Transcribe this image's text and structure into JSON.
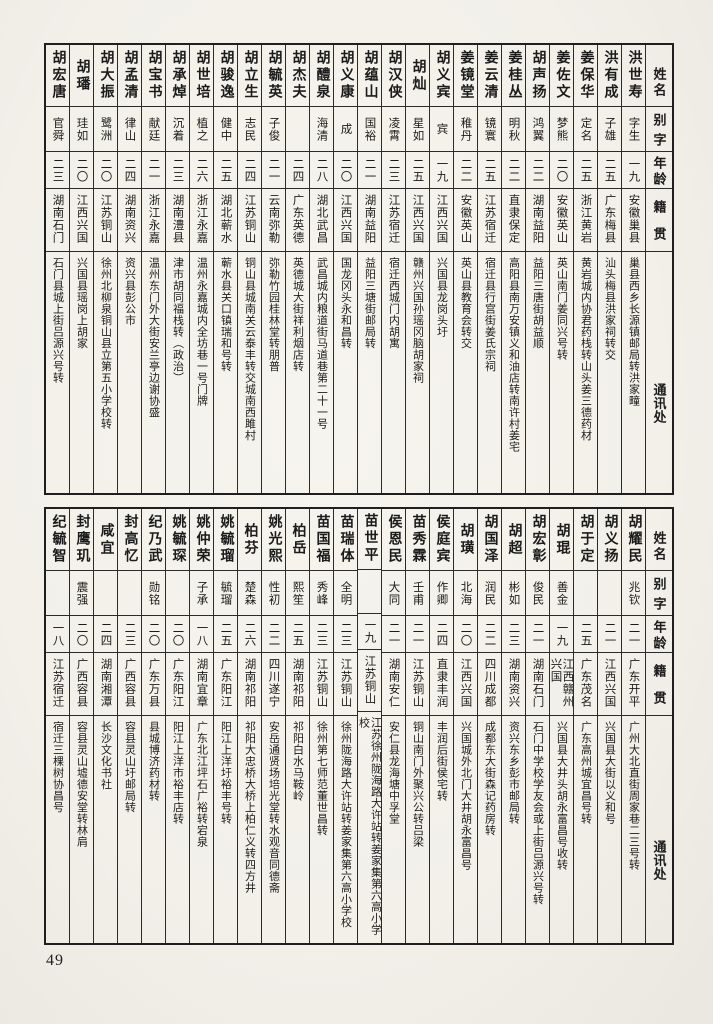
{
  "page": {
    "number": "49"
  },
  "colors": {
    "paper": "#f2f0e9",
    "ink": "#1b1b1b",
    "border": "#2b2b2b"
  },
  "headers": {
    "name": "姓名",
    "courtesy": "别字",
    "age": "年龄",
    "origin": "籍贯",
    "address": "通讯处"
  },
  "sections": [
    {
      "entries": [
        {
          "name": "洪世寿",
          "courtesy": "字生",
          "age": "一九",
          "origin": "安徽巢县",
          "address": "巢县西乡长源镇邮局转洪家疃"
        },
        {
          "name": "洪有成",
          "courtesy": "子雄",
          "age": "二五",
          "origin": "广东梅县",
          "address": "汕头梅县洪家祠转交"
        },
        {
          "name": "姜保华",
          "courtesy": "定名",
          "age": "二五",
          "origin": "浙江黄岩",
          "address": "黄岩城内协君药栈转山头姜三德药材"
        },
        {
          "name": "姜佐文",
          "courtesy": "梦熊",
          "age": "二〇",
          "origin": "安徽英山",
          "address": "英山南门姜同兴号转"
        },
        {
          "name": "胡声扬",
          "courtesy": "鸿翼",
          "age": "二二",
          "origin": "湖南益阳",
          "address": "益阳三唐街胡益顺"
        },
        {
          "name": "姜桂丛",
          "courtesy": "明秋",
          "age": "二二",
          "origin": "直隶保定",
          "address": "高阳县南万安镇义和油店转南许村姜宅"
        },
        {
          "name": "姜云清",
          "courtesy": "镜寰",
          "age": "二五",
          "origin": "江苏宿迁",
          "address": "宿迁县行宫街姜氏宗祠"
        },
        {
          "name": "姜镜堂",
          "courtesy": "稚丹",
          "age": "二二",
          "origin": "安徽英山",
          "address": "英山县教育会转交"
        },
        {
          "name": "胡义宾",
          "courtesy": "宾",
          "age": "一九",
          "origin": "江西兴国",
          "address": "兴国县龙岗头圩"
        },
        {
          "name": "胡灿",
          "courtesy": "星如",
          "age": "二五",
          "origin": "江西兴国",
          "address": "赣州兴国孙瑶冈脑胡家祠"
        },
        {
          "name": "胡汉侠",
          "courtesy": "凌霄",
          "age": "二三",
          "origin": "江苏宿迁",
          "address": "宿迁西城门内胡寓"
        },
        {
          "name": "胡蕴山",
          "courtesy": "国裕",
          "age": "二一",
          "origin": "湖南益阳",
          "address": "益阳三塘街邮局转"
        },
        {
          "name": "胡义康",
          "courtesy": "成",
          "age": "二〇",
          "origin": "江西兴国",
          "address": "国龙冈头永和昌转"
        },
        {
          "name": "胡醴泉",
          "courtesy": "海清",
          "age": "二八",
          "origin": "湖北武昌",
          "address": "武昌城内粮道街马道巷第二十一号"
        },
        {
          "name": "胡杰夫",
          "courtesy": "",
          "age": "二四",
          "origin": "广东英德",
          "address": "英德城大街祥利烟店转"
        },
        {
          "name": "胡毓英",
          "courtesy": "子俊",
          "age": "二一",
          "origin": "云南弥勒",
          "address": "弥勒竹园桂林堂转朋普"
        },
        {
          "name": "胡立生",
          "courtesy": "志民",
          "age": "二四",
          "origin": "江苏铜山",
          "address": "铜山县城南关云泰丰转交城南西雎村"
        },
        {
          "name": "胡骏逸",
          "courtesy": "健中",
          "age": "二五",
          "origin": "湖北蕲水",
          "address": "蕲水县关口镇瑞和号转"
        },
        {
          "name": "胡世培",
          "courtesy": "植之",
          "age": "二六",
          "origin": "浙江永嘉",
          "address": "温州永嘉城内全坊巷一号门牌"
        },
        {
          "name": "胡承焯",
          "courtesy": "沉着",
          "age": "二三",
          "origin": "湖南澧县",
          "address": "津市胡同福栈转（政治）"
        },
        {
          "name": "胡宝书",
          "courtesy": "献廷",
          "age": "二一",
          "origin": "浙江永嘉",
          "address": "温州东门外大街安兰亭边谢协盛"
        },
        {
          "name": "胡孟清",
          "courtesy": "律山",
          "age": "二四",
          "origin": "湖南资兴",
          "address": "资兴县彭公市"
        },
        {
          "name": "胡大振",
          "courtesy": "鹭洲",
          "age": "二〇",
          "origin": "江苏铜山",
          "address": "徐州北柳泉铜山县立第五小学校转"
        },
        {
          "name": "胡璠",
          "courtesy": "珪如",
          "age": "二〇",
          "origin": "江西兴国",
          "address": "兴国县瑶岗上胡家"
        },
        {
          "name": "胡宏唐",
          "courtesy": "官舜",
          "age": "二三",
          "origin": "湖南石门",
          "address": "石门县城上街吕源兴号转"
        }
      ]
    },
    {
      "entries": [
        {
          "name": "胡耀民",
          "courtesy": "兆钦",
          "age": "二一",
          "origin": "广东开平",
          "address": "广州大北直街周家巷二三号转"
        },
        {
          "name": "胡义扬",
          "courtesy": "",
          "age": "二一",
          "origin": "江西兴国",
          "address": "兴国县大街以义和号"
        },
        {
          "name": "胡于定",
          "courtesy": "",
          "age": "二五",
          "origin": "广东茂名",
          "address": "广东高州城宜昌号转"
        },
        {
          "name": "胡琨",
          "courtesy": "善金",
          "age": "一九",
          "origin": "江西赣州兴国",
          "address": "兴国县大井头胡永富昌号收转"
        },
        {
          "name": "胡宏彰",
          "courtesy": "俊民",
          "age": "二一",
          "origin": "湖南石门",
          "address": "石门中学校学友会或上街吕源兴号转"
        },
        {
          "name": "胡超",
          "courtesy": "彬如",
          "age": "二三",
          "origin": "湖南资兴",
          "address": "资兴东乡彭市邮局转"
        },
        {
          "name": "胡国泽",
          "courtesy": "润民",
          "age": "二二",
          "origin": "四川成都",
          "address": "成都东大街森记药房转"
        },
        {
          "name": "胡璜",
          "courtesy": "北海",
          "age": "二〇",
          "origin": "江西兴国",
          "address": "兴国城外北门大井胡永富昌号"
        },
        {
          "name": "侯庭宾",
          "courtesy": "作卿",
          "age": "二四",
          "origin": "直隶丰润",
          "address": "丰润后街侯宅转"
        },
        {
          "name": "苗秀霖",
          "courtesy": "壬甫",
          "age": "二一",
          "origin": "江苏铜山",
          "address": "铜山南门外聚兴公转吕梁"
        },
        {
          "name": "侯恩民",
          "courtesy": "大同",
          "age": "二一",
          "origin": "湖南安仁",
          "address": "安仁县龙海塘中孚堂"
        },
        {
          "name": "苗世平",
          "courtesy": "",
          "age": "一九",
          "origin": "江苏铜山",
          "address": "江苏徐州陇海路大许站转姜家集第六高小学校"
        },
        {
          "name": "苗瑞体",
          "courtesy": "全明",
          "age": "二三",
          "origin": "江苏铜山",
          "address": "徐州陇海路大许站转姜家集第六高小学校"
        },
        {
          "name": "苗国福",
          "courtesy": "秀峰",
          "age": "二三",
          "origin": "江苏铜山",
          "address": "徐州第七师范董世昌转"
        },
        {
          "name": "柏岳",
          "courtesy": "熙笙",
          "age": "二五",
          "origin": "湖南祁阳",
          "address": "祁阳白水马鞍岭"
        },
        {
          "name": "姚光熙",
          "courtesy": "性初",
          "age": "二二",
          "origin": "四川遂宁",
          "address": "安岳通贤场培光堂转水观音同德斋"
        },
        {
          "name": "柏芬",
          "courtesy": "楚森",
          "age": "二六",
          "origin": "湖南祁阳",
          "address": "祁阳大忠桥大桥上柏仁义转四方井"
        },
        {
          "name": "姚毓瑠",
          "courtesy": "毓瑠",
          "age": "二五",
          "origin": "广东阳江",
          "address": "阳江上洋圩裕丰号转"
        },
        {
          "name": "姚仲荣",
          "courtesy": "子承",
          "age": "一八",
          "origin": "湖南宜章",
          "address": "广东北江坪石广裕转宕泉"
        },
        {
          "name": "姚毓琛",
          "courtesy": "",
          "age": "二〇",
          "origin": "广东阳江",
          "address": "阳江上洋市裕丰店转"
        },
        {
          "name": "纪乃武",
          "courtesy": "勋铭",
          "age": "二〇",
          "origin": "广东万县",
          "address": "县城博济药材转"
        },
        {
          "name": "封高忆",
          "courtesy": "",
          "age": "二三",
          "origin": "广西容县",
          "address": "容县灵山圩邮局转"
        },
        {
          "name": "咸宜",
          "courtesy": "",
          "age": "二四",
          "origin": "湖南湘潭",
          "address": "长沙文化书社"
        },
        {
          "name": "封鹰玑",
          "courtesy": "震强",
          "age": "二〇",
          "origin": "广西容县",
          "address": "容县灵山墟德安堂转林肩"
        },
        {
          "name": "纪毓智",
          "courtesy": "",
          "age": "一八",
          "origin": "江苏宿迁",
          "address": "宿迁三棵树协昌号"
        }
      ]
    }
  ]
}
